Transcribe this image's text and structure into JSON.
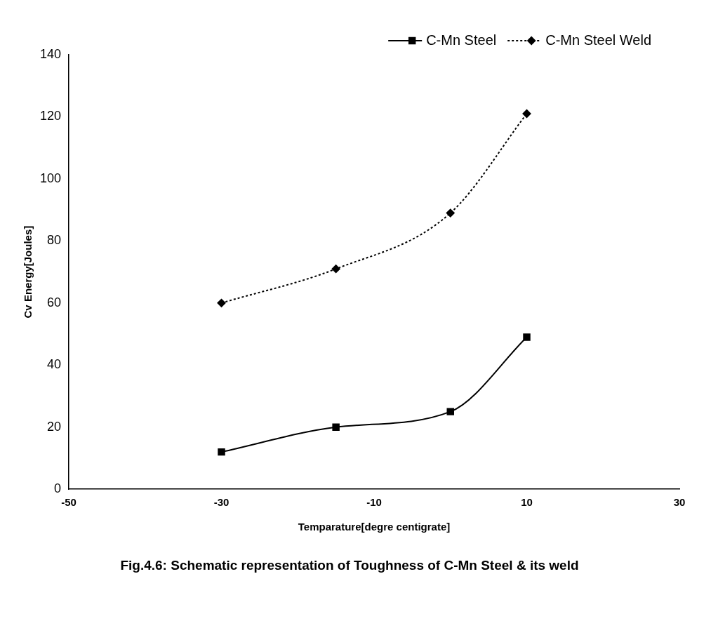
{
  "chart_data": {
    "type": "line",
    "title": "Fig.4.6: Schematic representation of Toughness of C-Mn Steel & its weld",
    "xlabel": "Temparature[degre centigrate]",
    "ylabel": "Cv Energy[Joules]",
    "x": [
      -30,
      -15,
      0,
      10
    ],
    "series": [
      {
        "name": "C-Mn Steel",
        "color": "#000000",
        "values": [
          12,
          20,
          25,
          49
        ],
        "marker": "square",
        "line_style": "solid"
      },
      {
        "name": "C-Mn Steel Weld",
        "color": "#000000",
        "values": [
          60,
          71,
          89,
          121
        ],
        "marker": "diamond",
        "line_style": "dotted"
      }
    ],
    "xlim": [
      -50,
      30
    ],
    "xticks": [
      -50,
      -30,
      -10,
      10,
      30
    ],
    "ylim": [
      0,
      140
    ],
    "yticks": [
      0,
      20,
      40,
      60,
      80,
      100,
      120,
      140
    ],
    "grid": false,
    "legend": "top right"
  }
}
